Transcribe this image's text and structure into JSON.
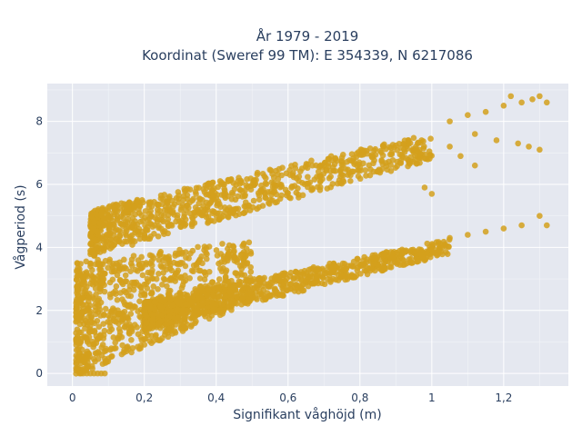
{
  "chart_data": {
    "type": "scatter",
    "title_lines": [
      "År 1979 - 2019",
      "Koordinat (Sweref 99 TM): E 354339, N 6217086"
    ],
    "xlabel": "Signifikant våghöjd (m)",
    "ylabel": "Vågperiod (s)",
    "xlim": [
      -0.07,
      1.38
    ],
    "ylim": [
      -0.4,
      9.2
    ],
    "x_ticks": [
      0,
      0.2,
      0.4,
      0.6,
      0.8,
      1,
      1.2
    ],
    "x_tick_labels": [
      "0",
      "0,2",
      "0,4",
      "0,6",
      "0,8",
      "1",
      "1,2"
    ],
    "y_ticks": [
      0,
      2,
      4,
      6,
      8
    ],
    "y_tick_labels": [
      "0",
      "2",
      "4",
      "6",
      "8"
    ],
    "grid": true,
    "plot_bgcolor": "#e5e8f0",
    "marker_color": "#d4a01c",
    "series": [
      {
        "points_description_free": true,
        "clusters": [
          {
            "x_range": [
              0.01,
              0.5
            ],
            "y_center_at_x0": 1.7,
            "y_slope": 3.1,
            "y_spread": 3.6
          },
          {
            "x_range": [
              0.05,
              1.0
            ],
            "y_center_at_x0": 4.3,
            "y_slope": 2.9,
            "y_spread": 1.5
          },
          {
            "x_range": [
              0.2,
              1.05
            ],
            "y_center_at_x0": 1.3,
            "y_slope": 2.6,
            "y_spread": 0.9
          }
        ],
        "extra_points": [
          [
            0.02,
            0
          ],
          [
            0.03,
            0
          ],
          [
            0.04,
            0
          ],
          [
            0.05,
            0
          ],
          [
            0.06,
            0
          ],
          [
            0.07,
            0
          ],
          [
            0.08,
            0
          ],
          [
            0.09,
            0
          ],
          [
            1.05,
            8.0
          ],
          [
            1.1,
            8.2
          ],
          [
            1.15,
            8.3
          ],
          [
            1.2,
            8.5
          ],
          [
            1.22,
            8.8
          ],
          [
            1.25,
            8.6
          ],
          [
            1.28,
            8.7
          ],
          [
            1.3,
            8.8
          ],
          [
            1.32,
            8.6
          ],
          [
            1.12,
            7.6
          ],
          [
            1.18,
            7.4
          ],
          [
            1.24,
            7.3
          ],
          [
            1.27,
            7.2
          ],
          [
            1.3,
            7.1
          ],
          [
            1.05,
            4.3
          ],
          [
            1.1,
            4.4
          ],
          [
            1.15,
            4.5
          ],
          [
            1.2,
            4.6
          ],
          [
            1.25,
            4.7
          ],
          [
            1.3,
            5.0
          ],
          [
            1.32,
            4.7
          ],
          [
            0.98,
            5.9
          ],
          [
            1.0,
            5.7
          ],
          [
            1.05,
            7.2
          ],
          [
            1.08,
            6.9
          ],
          [
            1.12,
            6.6
          ]
        ]
      }
    ]
  }
}
